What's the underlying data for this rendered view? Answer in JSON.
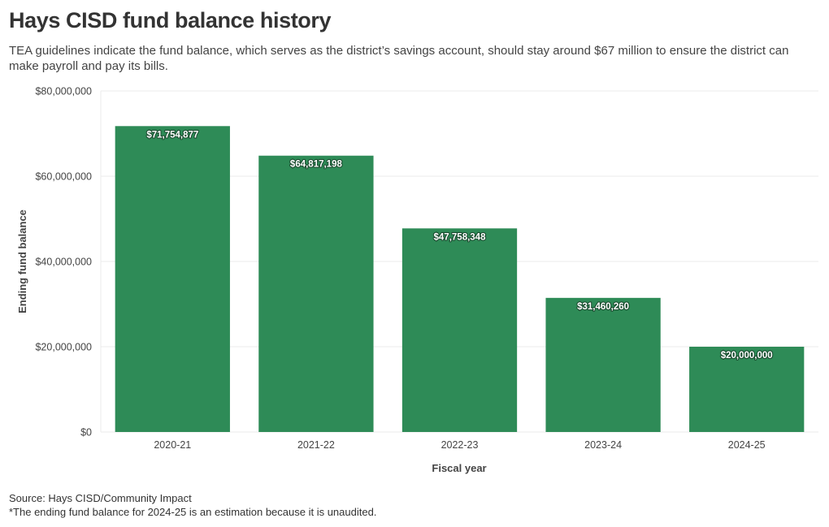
{
  "header": {
    "title": "Hays CISD fund balance history",
    "subtitle": "TEA guidelines indicate the fund balance, which serves as the district’s savings account, should stay around $67 million to ensure the district can make payroll and pay its bills."
  },
  "footer": {
    "source": "Source: Hays CISD/Community Impact",
    "note": "*The ending fund balance for 2024-25 is an estimation because it is unaudited."
  },
  "colors": {
    "bar": "#2e8b57",
    "grid": "#ebebeb",
    "axis_text": "#444444",
    "label_text": "#ffffff"
  },
  "chart_data": {
    "type": "bar",
    "title": "Hays CISD fund balance history",
    "xlabel": "Fiscal year",
    "ylabel": "Ending fund balance",
    "categories": [
      "2020-21",
      "2021-22",
      "2022-23",
      "2023-24",
      "2024-25"
    ],
    "values": [
      71754877,
      64817198,
      47758348,
      31460260,
      20000000
    ],
    "data_labels": [
      "$71,754,877",
      "$64,817,198",
      "$47,758,348",
      "$31,460,260",
      "$20,000,000"
    ],
    "ylim": [
      0,
      80000000
    ],
    "yticks": [
      0,
      20000000,
      40000000,
      60000000,
      80000000
    ],
    "ytick_labels": [
      "$0",
      "$20,000,000",
      "$40,000,000",
      "$60,000,000",
      "$80,000,000"
    ],
    "grid": true,
    "legend": "none"
  }
}
